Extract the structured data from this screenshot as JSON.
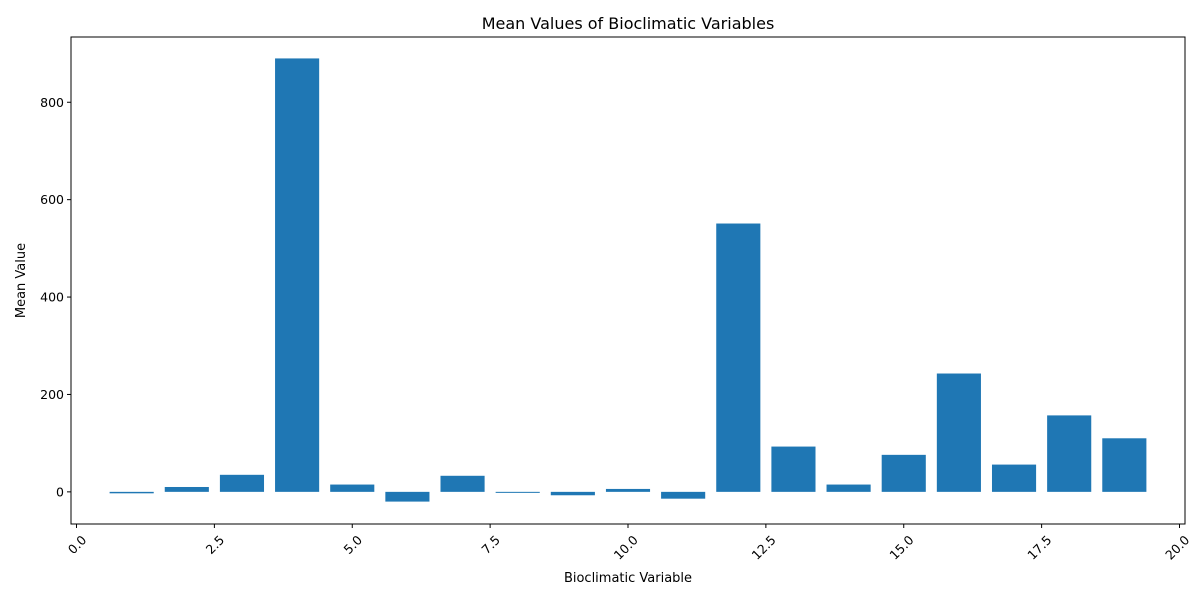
{
  "chart_data": {
    "type": "bar",
    "title": "Mean Values of Bioclimatic Variables",
    "xlabel": "Bioclimatic Variable",
    "ylabel": "Mean Value",
    "x": [
      1,
      2,
      3,
      4,
      5,
      6,
      7,
      8,
      9,
      10,
      11,
      12,
      13,
      14,
      15,
      16,
      17,
      18,
      19
    ],
    "values": [
      -3,
      10,
      35,
      890,
      15,
      -20,
      33,
      -2,
      -7,
      6,
      -14,
      551,
      93,
      15,
      76,
      243,
      56,
      157,
      110
    ],
    "xlim": [
      -0.1,
      20.1
    ],
    "ylim": [
      -66,
      934
    ],
    "xticks": [
      0.0,
      2.5,
      5.0,
      7.5,
      10.0,
      12.5,
      15.0,
      17.5,
      20.0
    ],
    "xtick_labels": [
      "0.0",
      "2.5",
      "5.0",
      "7.5",
      "10.0",
      "12.5",
      "15.0",
      "17.5",
      "20.0"
    ],
    "yticks": [
      0,
      200,
      400,
      600,
      800
    ],
    "ytick_labels": [
      "0",
      "200",
      "400",
      "600",
      "800"
    ],
    "xtick_rotation": 45,
    "bar_color": "#1f77b4",
    "grid": false,
    "legend": "none"
  }
}
